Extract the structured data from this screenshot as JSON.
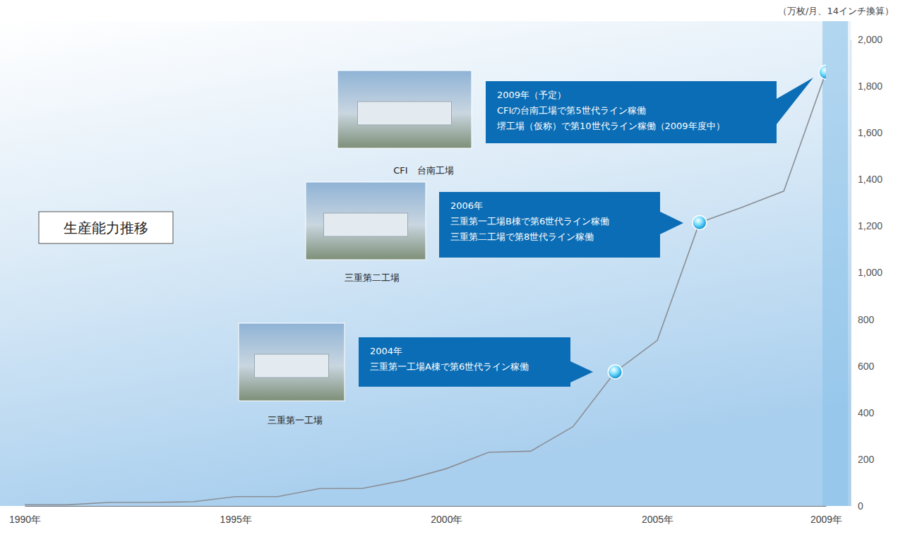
{
  "chart_data": {
    "type": "line",
    "title": "生産能力推移",
    "y_label": "（万枚/月、14インチ換算）",
    "x": [
      1990,
      1991,
      1992,
      1993,
      1994,
      1995,
      1996,
      1997,
      1998,
      1999,
      2000,
      2001,
      2002,
      2003,
      2004,
      2005,
      2006,
      2007,
      2008,
      2009
    ],
    "values": [
      5,
      5,
      15,
      15,
      18,
      40,
      40,
      75,
      75,
      110,
      160,
      230,
      235,
      340,
      575,
      710,
      1215,
      1280,
      1350,
      1860
    ],
    "color": "#8a8f96",
    "xlim": [
      1990,
      2009
    ],
    "xticks": [
      {
        "value": 1990,
        "label": "1990年"
      },
      {
        "value": 1995,
        "label": "1995年"
      },
      {
        "value": 2000,
        "label": "2000年"
      },
      {
        "value": 2005,
        "label": "2005年"
      },
      {
        "value": 2009,
        "label": "2009年"
      }
    ],
    "ylim": [
      0,
      2000
    ],
    "yticks": [
      0,
      200,
      400,
      600,
      800,
      {
        "value": 1000,
        "label": "1,000"
      },
      {
        "value": 1200,
        "label": "1,200"
      },
      {
        "value": 1400,
        "label": "1,400"
      },
      {
        "value": 1600,
        "label": "1,600"
      },
      {
        "value": 1800,
        "label": "1,800"
      },
      {
        "value": 2000,
        "label": "2,000"
      }
    ],
    "grid": false,
    "annotations": [
      {
        "x": 2004,
        "lines": [
          "2004年",
          "三重第一工場A棟で第6世代ライン稼働"
        ]
      },
      {
        "x": 2006,
        "lines": [
          "2006年",
          "三重第一工場B棟で第6世代ライン稼働",
          "三重第二工場で第8世代ライン稼働"
        ]
      },
      {
        "x": 2009,
        "lines": [
          "2009年（予定）",
          "CFIの台南工場で第5世代ライン稼働",
          "堺工場（仮称）で第10世代ライン稼働（2009年度中）"
        ]
      }
    ],
    "images": [
      {
        "caption": "CFI　台南工場"
      },
      {
        "caption": "三重第二工場"
      },
      {
        "caption": "三重第一工場"
      }
    ]
  }
}
